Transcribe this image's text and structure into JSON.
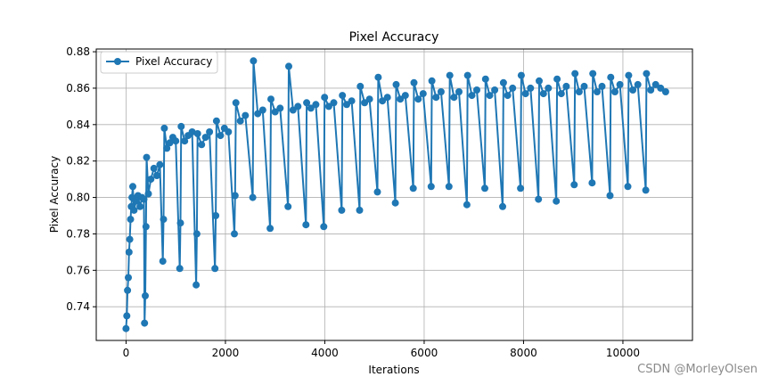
{
  "chart_data": {
    "type": "line",
    "title": "Pixel Accuracy",
    "xlabel": "Iterations",
    "ylabel": "Pixel Accuracy",
    "xlim": [
      -600,
      11400
    ],
    "ylim": [
      0.7215,
      0.8815
    ],
    "xticks": [
      0,
      2000,
      4000,
      6000,
      8000,
      10000
    ],
    "yticks": [
      0.74,
      0.76,
      0.78,
      0.8,
      0.82,
      0.84,
      0.86,
      0.88
    ],
    "grid": true,
    "legend": "top-left",
    "color": "#1f77b4",
    "marker": "circle",
    "series": [
      {
        "name": "Pixel Accuracy",
        "points": [
          [
            0,
            0.728
          ],
          [
            15,
            0.735
          ],
          [
            30,
            0.749
          ],
          [
            45,
            0.756
          ],
          [
            60,
            0.77
          ],
          [
            75,
            0.777
          ],
          [
            90,
            0.788
          ],
          [
            105,
            0.795
          ],
          [
            120,
            0.8
          ],
          [
            135,
            0.806
          ],
          [
            160,
            0.793
          ],
          [
            200,
            0.798
          ],
          [
            240,
            0.801
          ],
          [
            280,
            0.795
          ],
          [
            320,
            0.8
          ],
          [
            360,
            0.799
          ],
          [
            372,
            0.731
          ],
          [
            386,
            0.746
          ],
          [
            400,
            0.784
          ],
          [
            414,
            0.822
          ],
          [
            450,
            0.802
          ],
          [
            500,
            0.81
          ],
          [
            560,
            0.816
          ],
          [
            620,
            0.812
          ],
          [
            680,
            0.818
          ],
          [
            740,
            0.765
          ],
          [
            755,
            0.788
          ],
          [
            770,
            0.838
          ],
          [
            820,
            0.827
          ],
          [
            880,
            0.83
          ],
          [
            940,
            0.833
          ],
          [
            1000,
            0.831
          ],
          [
            1080,
            0.761
          ],
          [
            1095,
            0.786
          ],
          [
            1110,
            0.839
          ],
          [
            1180,
            0.831
          ],
          [
            1250,
            0.834
          ],
          [
            1330,
            0.836
          ],
          [
            1410,
            0.752
          ],
          [
            1425,
            0.78
          ],
          [
            1440,
            0.835
          ],
          [
            1520,
            0.829
          ],
          [
            1600,
            0.833
          ],
          [
            1680,
            0.836
          ],
          [
            1790,
            0.761
          ],
          [
            1805,
            0.79
          ],
          [
            1820,
            0.842
          ],
          [
            1900,
            0.834
          ],
          [
            1980,
            0.838
          ],
          [
            2060,
            0.836
          ],
          [
            2180,
            0.78
          ],
          [
            2195,
            0.801
          ],
          [
            2210,
            0.852
          ],
          [
            2300,
            0.842
          ],
          [
            2400,
            0.845
          ],
          [
            2550,
            0.8
          ],
          [
            2565,
            0.875
          ],
          [
            2650,
            0.846
          ],
          [
            2750,
            0.848
          ],
          [
            2900,
            0.783
          ],
          [
            2915,
            0.854
          ],
          [
            3000,
            0.847
          ],
          [
            3100,
            0.849
          ],
          [
            3260,
            0.795
          ],
          [
            3275,
            0.872
          ],
          [
            3360,
            0.848
          ],
          [
            3460,
            0.85
          ],
          [
            3620,
            0.785
          ],
          [
            3635,
            0.852
          ],
          [
            3720,
            0.849
          ],
          [
            3820,
            0.851
          ],
          [
            3980,
            0.784
          ],
          [
            3995,
            0.855
          ],
          [
            4080,
            0.85
          ],
          [
            4180,
            0.852
          ],
          [
            4340,
            0.793
          ],
          [
            4355,
            0.856
          ],
          [
            4440,
            0.851
          ],
          [
            4540,
            0.853
          ],
          [
            4700,
            0.793
          ],
          [
            4715,
            0.861
          ],
          [
            4800,
            0.852
          ],
          [
            4900,
            0.854
          ],
          [
            5060,
            0.803
          ],
          [
            5075,
            0.866
          ],
          [
            5160,
            0.853
          ],
          [
            5260,
            0.855
          ],
          [
            5420,
            0.797
          ],
          [
            5435,
            0.862
          ],
          [
            5520,
            0.854
          ],
          [
            5620,
            0.856
          ],
          [
            5780,
            0.805
          ],
          [
            5795,
            0.863
          ],
          [
            5880,
            0.854
          ],
          [
            5980,
            0.857
          ],
          [
            6140,
            0.806
          ],
          [
            6155,
            0.864
          ],
          [
            6240,
            0.855
          ],
          [
            6340,
            0.858
          ],
          [
            6500,
            0.806
          ],
          [
            6515,
            0.867
          ],
          [
            6600,
            0.855
          ],
          [
            6700,
            0.858
          ],
          [
            6860,
            0.796
          ],
          [
            6875,
            0.867
          ],
          [
            6960,
            0.856
          ],
          [
            7060,
            0.859
          ],
          [
            7220,
            0.805
          ],
          [
            7235,
            0.865
          ],
          [
            7320,
            0.856
          ],
          [
            7420,
            0.859
          ],
          [
            7580,
            0.795
          ],
          [
            7595,
            0.863
          ],
          [
            7680,
            0.856
          ],
          [
            7780,
            0.86
          ],
          [
            7940,
            0.805
          ],
          [
            7955,
            0.867
          ],
          [
            8040,
            0.857
          ],
          [
            8140,
            0.86
          ],
          [
            8300,
            0.799
          ],
          [
            8315,
            0.864
          ],
          [
            8400,
            0.857
          ],
          [
            8500,
            0.86
          ],
          [
            8660,
            0.798
          ],
          [
            8675,
            0.865
          ],
          [
            8760,
            0.857
          ],
          [
            8860,
            0.861
          ],
          [
            9020,
            0.807
          ],
          [
            9035,
            0.868
          ],
          [
            9120,
            0.858
          ],
          [
            9220,
            0.861
          ],
          [
            9380,
            0.808
          ],
          [
            9395,
            0.868
          ],
          [
            9480,
            0.858
          ],
          [
            9580,
            0.861
          ],
          [
            9740,
            0.801
          ],
          [
            9755,
            0.866
          ],
          [
            9840,
            0.858
          ],
          [
            9940,
            0.862
          ],
          [
            10100,
            0.806
          ],
          [
            10115,
            0.867
          ],
          [
            10200,
            0.859
          ],
          [
            10300,
            0.862
          ],
          [
            10460,
            0.804
          ],
          [
            10475,
            0.868
          ],
          [
            10560,
            0.859
          ],
          [
            10660,
            0.862
          ],
          [
            10760,
            0.86
          ],
          [
            10860,
            0.858
          ]
        ]
      }
    ]
  },
  "watermark": "CSDN @MorleyOlsen"
}
